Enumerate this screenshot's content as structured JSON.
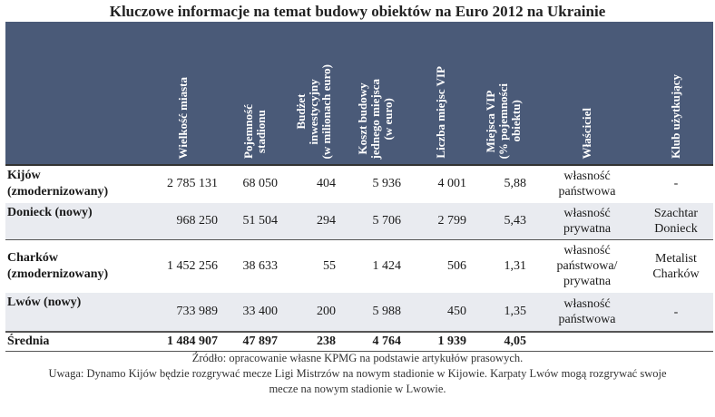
{
  "title": "Kluczowe informacje na temat budowy obiektów na Euro 2012 na Ukrainie",
  "headers": [
    {
      "lines": [
        "Wielkość miasta"
      ]
    },
    {
      "lines": [
        "Pojemność",
        "stadionu"
      ]
    },
    {
      "lines": [
        "Budżet",
        "inwestycyjny",
        "(w milionach euro)"
      ]
    },
    {
      "lines": [
        "Koszt budowy",
        "jednego miejsca",
        "(w euro)"
      ]
    },
    {
      "lines": [
        "Liczba miejsc VIP"
      ]
    },
    {
      "lines": [
        "Miejsca VIP",
        "(% pojemności",
        "obiektu)"
      ]
    },
    {
      "lines": [
        "Właściciel"
      ]
    },
    {
      "lines": [
        "Klub użytkujący"
      ]
    }
  ],
  "rows": [
    {
      "name": [
        "Kijów",
        "(zmodernizowany)"
      ],
      "size": "2 785 131",
      "capacity": "68 050",
      "budget": "404",
      "cost": "5 936",
      "vip": "4 001",
      "vip_pct": "5,88",
      "owner": [
        "własność",
        "państwowa"
      ],
      "club": [
        "-"
      ]
    },
    {
      "name": [
        "Donieck (nowy)"
      ],
      "size": "968 250",
      "capacity": "51 504",
      "budget": "294",
      "cost": "5 706",
      "vip": "2 799",
      "vip_pct": "5,43",
      "owner": [
        "własność",
        "prywatna"
      ],
      "club": [
        "Szachtar",
        "Donieck"
      ]
    },
    {
      "name": [
        "Charków",
        "(zmodernizowany)"
      ],
      "size": "1 452 256",
      "capacity": "38 633",
      "budget": "55",
      "cost": "1 424",
      "vip": "506",
      "vip_pct": "1,31",
      "owner": [
        "własność",
        "państwowa/",
        "prywatna"
      ],
      "club": [
        "Metalist",
        "Charków"
      ]
    },
    {
      "name": [
        "Lwów (nowy)"
      ],
      "size": "733 989",
      "capacity": "33 400",
      "budget": "200",
      "cost": "5 988",
      "vip": "450",
      "vip_pct": "1,35",
      "owner": [
        "własność",
        "państwowa"
      ],
      "club": [
        "-"
      ]
    }
  ],
  "average": {
    "name": "Średnia",
    "size": "1 484 907",
    "capacity": "47 897",
    "budget": "238",
    "cost": "4 764",
    "vip": "1 939",
    "vip_pct": "4,05"
  },
  "footer": {
    "source": "Źródło: opracowanie własne KPMG na podstawie artykułów prasowych.",
    "note_line1": "Uwaga: Dynamo Kijów będzie rozgrywać mecze Ligi Mistrzów na nowym stadionie w Kijowie. Karpaty Lwów mogą rozgrywać swoje",
    "note_line2": "mecze na nowym stadionie w Lwowie."
  }
}
